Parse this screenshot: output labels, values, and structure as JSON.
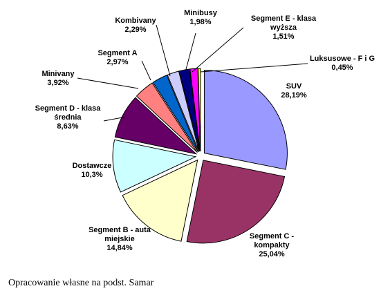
{
  "chart_data": {
    "type": "pie",
    "exploded": true,
    "slices": [
      {
        "key": "suv",
        "label_lines": [
          "SUV"
        ],
        "value_text": "28,19%",
        "value": 28.19,
        "color": "#9999ff"
      },
      {
        "key": "segment-c",
        "label_lines": [
          "Segment C -",
          "kompakty"
        ],
        "value_text": "25,04%",
        "value": 25.04,
        "color": "#993366"
      },
      {
        "key": "segment-b",
        "label_lines": [
          "Segment B - auta",
          "miejskie"
        ],
        "value_text": "14,84%",
        "value": 14.84,
        "color": "#ffffcc"
      },
      {
        "key": "dostawcze",
        "label_lines": [
          "Dostawcze"
        ],
        "value_text": "10,3%",
        "value": 10.3,
        "color": "#ccffff"
      },
      {
        "key": "segment-d",
        "label_lines": [
          "Segment D - klasa",
          "średnia"
        ],
        "value_text": "8,63%",
        "value": 8.63,
        "color": "#660066"
      },
      {
        "key": "minivany",
        "label_lines": [
          "Minivany"
        ],
        "value_text": "3,92%",
        "value": 3.92,
        "color": "#ff8080"
      },
      {
        "key": "segment-a",
        "label_lines": [
          "Segment A"
        ],
        "value_text": "2,97%",
        "value": 2.97,
        "color": "#0066cc"
      },
      {
        "key": "kombivany",
        "label_lines": [
          "Kombivany"
        ],
        "value_text": "2,29%",
        "value": 2.29,
        "color": "#ccccff"
      },
      {
        "key": "minibusy",
        "label_lines": [
          "Minibusy"
        ],
        "value_text": "1,98%",
        "value": 1.98,
        "color": "#000080"
      },
      {
        "key": "segment-e",
        "label_lines": [
          "Segment E - klasa",
          "wyższa"
        ],
        "value_text": "1,51%",
        "value": 1.51,
        "color": "#ff00ff"
      },
      {
        "key": "luksusowe",
        "label_lines": [
          "Luksusowe - F i G"
        ],
        "value_text": "0,45%",
        "value": 0.45,
        "color": "#ffff00"
      }
    ]
  },
  "source_note": "Opracowanie własne na podst. Samar"
}
